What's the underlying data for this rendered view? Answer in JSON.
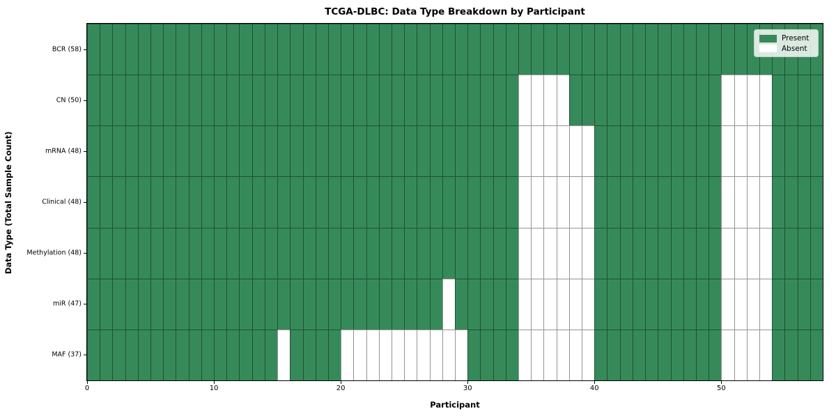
{
  "title": "TCGA-DLBC: Data Type Breakdown by Participant",
  "x_axis_label": "Participant",
  "y_axis_label": "Data Type (Total Sample Count)",
  "legend": {
    "present_label": "Present",
    "absent_label": "Absent"
  },
  "colors": {
    "present": "#368a59",
    "absent": "#ffffff",
    "grid_line": "rgba(0,0,0,0.42)"
  },
  "chart_data": {
    "type": "heatmap",
    "title": "TCGA-DLBC: Data Type Breakdown by Participant",
    "xlabel": "Participant",
    "ylabel": "Data Type (Total Sample Count)",
    "x_range": [
      0,
      58
    ],
    "n_participants": 58,
    "x_ticks": [
      0,
      10,
      20,
      30,
      40,
      50
    ],
    "grid": true,
    "legend_position": "upper right",
    "legend_entries": [
      "Present",
      "Absent"
    ],
    "value_encoding": {
      "present": 1,
      "absent": 0
    },
    "rows": [
      {
        "label": "BCR (58)",
        "data_type": "BCR",
        "present_count": 58,
        "absent_columns": []
      },
      {
        "label": "CN (50)",
        "data_type": "CN",
        "present_count": 50,
        "absent_columns": [
          34,
          35,
          36,
          37,
          50,
          51,
          52,
          53
        ]
      },
      {
        "label": "mRNA (48)",
        "data_type": "mRNA",
        "present_count": 48,
        "absent_columns": [
          34,
          35,
          36,
          37,
          38,
          39,
          50,
          51,
          52,
          53
        ]
      },
      {
        "label": "Clinical (48)",
        "data_type": "Clinical",
        "present_count": 48,
        "absent_columns": [
          34,
          35,
          36,
          37,
          38,
          39,
          50,
          51,
          52,
          53
        ]
      },
      {
        "label": "Methylation (48)",
        "data_type": "Methylation",
        "present_count": 48,
        "absent_columns": [
          34,
          35,
          36,
          37,
          38,
          39,
          50,
          51,
          52,
          53
        ]
      },
      {
        "label": "miR (47)",
        "data_type": "miR",
        "present_count": 47,
        "absent_columns": [
          28,
          34,
          35,
          36,
          37,
          38,
          39,
          50,
          51,
          52,
          53
        ]
      },
      {
        "label": "MAF (37)",
        "data_type": "MAF",
        "present_count": 37,
        "absent_columns": [
          15,
          20,
          21,
          22,
          23,
          24,
          25,
          26,
          27,
          28,
          29,
          34,
          35,
          36,
          37,
          38,
          39,
          50,
          51,
          52,
          53
        ]
      }
    ]
  }
}
